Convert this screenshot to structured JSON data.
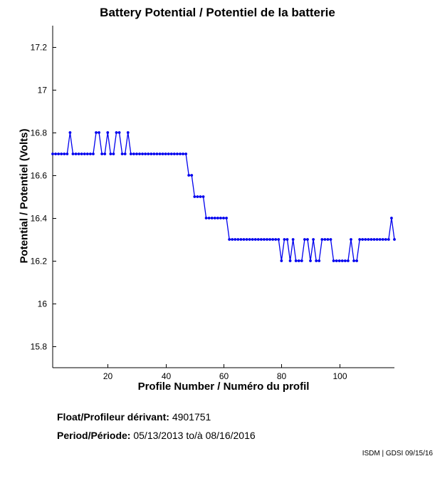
{
  "chart_data": {
    "type": "line",
    "title": "Battery Potential / Potentiel de la batterie",
    "xlabel": "Profile Number / Numéro du profil",
    "ylabel": "Potential / Potentiel (Volts)",
    "xlim": [
      1,
      119
    ],
    "ylim": [
      15.7,
      17.3
    ],
    "xticks": [
      20,
      40,
      60,
      80,
      100
    ],
    "yticks": [
      15.8,
      16,
      16.2,
      16.4,
      16.6,
      16.8,
      17,
      17.2
    ],
    "grid": false,
    "series": [
      {
        "name": "Battery Potential",
        "color": "#0000ee",
        "x": [
          1,
          2,
          3,
          4,
          5,
          6,
          7,
          8,
          9,
          10,
          11,
          12,
          13,
          14,
          15,
          16,
          17,
          18,
          19,
          20,
          21,
          22,
          23,
          24,
          25,
          26,
          27,
          28,
          29,
          30,
          31,
          32,
          33,
          34,
          35,
          36,
          37,
          38,
          39,
          40,
          41,
          42,
          43,
          44,
          45,
          46,
          47,
          48,
          49,
          50,
          51,
          52,
          53,
          54,
          55,
          56,
          57,
          58,
          59,
          60,
          61,
          62,
          63,
          64,
          65,
          66,
          67,
          68,
          69,
          70,
          71,
          72,
          73,
          74,
          75,
          76,
          77,
          78,
          79,
          80,
          81,
          82,
          83,
          84,
          85,
          86,
          87,
          88,
          89,
          90,
          91,
          92,
          93,
          94,
          95,
          96,
          97,
          98,
          99,
          100,
          101,
          102,
          103,
          104,
          105,
          106,
          107,
          108,
          109,
          110,
          111,
          112,
          113,
          114,
          115,
          116,
          117,
          118,
          119
        ],
        "values": [
          16.7,
          16.7,
          16.7,
          16.7,
          16.7,
          16.7,
          16.8,
          16.7,
          16.7,
          16.7,
          16.7,
          16.7,
          16.7,
          16.7,
          16.7,
          16.8,
          16.8,
          16.7,
          16.7,
          16.8,
          16.7,
          16.7,
          16.8,
          16.8,
          16.7,
          16.7,
          16.8,
          16.7,
          16.7,
          16.7,
          16.7,
          16.7,
          16.7,
          16.7,
          16.7,
          16.7,
          16.7,
          16.7,
          16.7,
          16.7,
          16.7,
          16.7,
          16.7,
          16.7,
          16.7,
          16.7,
          16.7,
          16.6,
          16.6,
          16.5,
          16.5,
          16.5,
          16.5,
          16.4,
          16.4,
          16.4,
          16.4,
          16.4,
          16.4,
          16.4,
          16.4,
          16.3,
          16.3,
          16.3,
          16.3,
          16.3,
          16.3,
          16.3,
          16.3,
          16.3,
          16.3,
          16.3,
          16.3,
          16.3,
          16.3,
          16.3,
          16.3,
          16.3,
          16.3,
          16.2,
          16.3,
          16.3,
          16.2,
          16.3,
          16.2,
          16.2,
          16.2,
          16.3,
          16.3,
          16.2,
          16.3,
          16.2,
          16.2,
          16.3,
          16.3,
          16.3,
          16.3,
          16.2,
          16.2,
          16.2,
          16.2,
          16.2,
          16.2,
          16.3,
          16.2,
          16.2,
          16.3,
          16.3,
          16.3,
          16.3,
          16.3,
          16.3,
          16.3,
          16.3,
          16.3,
          16.3,
          16.3,
          16.4,
          16.3
        ]
      }
    ]
  },
  "info": {
    "float_label": "Float/Profileur dérivant:",
    "float_value": "4901751",
    "period_label": "Period/Période:",
    "period_start": "05/13/2013",
    "period_sep": "to/à",
    "period_end": "08/16/2016"
  },
  "footer": "ISDM | GDSI 09/15/16"
}
